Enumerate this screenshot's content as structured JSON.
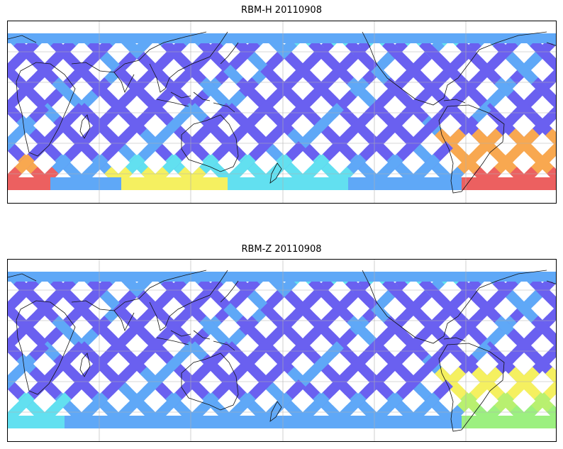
{
  "panels": [
    {
      "title": "RBM-H 20110908",
      "colors": {
        "low": "#6a60f0",
        "mid": "#5fa8f7",
        "cyan": "#62e0f0",
        "yellow": "#f5f060",
        "orange": "#f8a850",
        "red": "#ec6060"
      }
    },
    {
      "title": "RBM-Z 20110908",
      "colors": {
        "low": "#6a60f0",
        "mid": "#5fa8f7",
        "cyan": "#62e0f0",
        "yellow": "#f5f060",
        "orange": "#b8f070",
        "red": "#9cf080"
      }
    }
  ],
  "map": {
    "projection": "plate-carree",
    "gridlines": true,
    "coastlines": true,
    "coverage_band": "satellite orbit swaths"
  }
}
